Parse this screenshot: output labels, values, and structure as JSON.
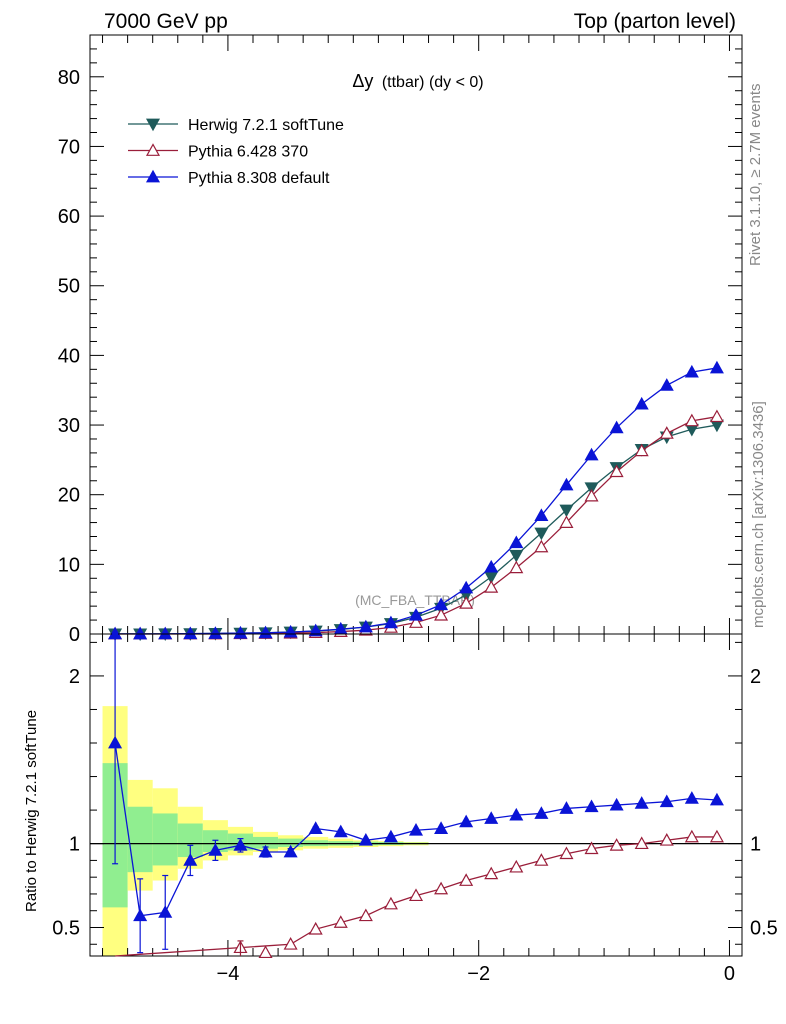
{
  "header": {
    "left": "7000 GeV pp",
    "right": "Top (parton level)"
  },
  "side_labels": {
    "rivet": "Rivet 3.1.10, ≥ 2.7M events",
    "mcplots": "mcplots.cern.ch [arXiv:1306.3436]"
  },
  "watermark": "(MC_FBA_TTBAR)",
  "chart_data": {
    "type": "line",
    "title": "Δy (ttbar) (dy < 0)",
    "title_main": "Δy",
    "title_sub": "(ttbar) (dy < 0)",
    "xlim": [
      -5.1,
      0.1
    ],
    "x_ticks": [
      -4,
      -2,
      0
    ],
    "x_tick_labels": [
      "−4",
      "−2",
      "0"
    ],
    "top_panel": {
      "ylim": [
        0,
        86
      ],
      "y_ticks": [
        0,
        10,
        20,
        30,
        40,
        50,
        60,
        70,
        80
      ],
      "y_tick_labels": [
        "0",
        "10",
        "20",
        "30",
        "40",
        "50",
        "60",
        "70",
        "80"
      ]
    },
    "ratio_panel": {
      "ylabel": "Ratio to Herwig 7.2.1 softTune",
      "ylim": [
        0.33,
        2.25
      ],
      "y_ticks": [
        0.5,
        1,
        2
      ],
      "y_tick_labels": [
        "0.5",
        "1",
        "2"
      ]
    },
    "legend_position": "top-left",
    "x": [
      -4.9,
      -4.7,
      -4.5,
      -4.3,
      -4.1,
      -3.9,
      -3.7,
      -3.5,
      -3.3,
      -3.1,
      -2.9,
      -2.7,
      -2.5,
      -2.3,
      -2.1,
      -1.9,
      -1.7,
      -1.5,
      -1.3,
      -1.1,
      -0.9,
      -0.7,
      -0.5,
      -0.3,
      -0.1
    ],
    "series": [
      {
        "name": "Herwig 7.2.1 softTune",
        "color": "#1f5b5b",
        "marker": "triangle-down-filled",
        "values": [
          0.01,
          0.02,
          0.03,
          0.05,
          0.08,
          0.12,
          0.18,
          0.28,
          0.42,
          0.65,
          1.0,
          1.5,
          2.4,
          3.7,
          5.6,
          8.2,
          11.3,
          14.5,
          17.8,
          21.0,
          23.9,
          26.5,
          28.3,
          29.4,
          30.0
        ],
        "ratio": [
          1,
          1,
          1,
          1,
          1,
          1,
          1,
          1,
          1,
          1,
          1,
          1,
          1,
          1,
          1,
          1,
          1,
          1,
          1,
          1,
          1,
          1,
          1,
          1,
          1
        ]
      },
      {
        "name": "Pythia 6.428 370",
        "color": "#9a1e3a",
        "marker": "triangle-up-open",
        "values": [
          0.0,
          0.0,
          0.0,
          0.0,
          0.0,
          0.04,
          0.07,
          0.11,
          0.2,
          0.35,
          0.55,
          0.95,
          1.65,
          2.7,
          4.4,
          6.7,
          9.5,
          12.5,
          16.0,
          19.8,
          23.3,
          26.3,
          28.8,
          30.6,
          31.2
        ],
        "ratio": [
          null,
          null,
          null,
          null,
          null,
          0.38,
          0.35,
          0.4,
          0.49,
          0.53,
          0.57,
          0.64,
          0.69,
          0.73,
          0.78,
          0.82,
          0.86,
          0.9,
          0.94,
          0.97,
          0.99,
          1.0,
          1.02,
          1.04,
          1.04
        ]
      },
      {
        "name": "Pythia 8.308 default",
        "color": "#0a14d6",
        "marker": "triangle-up-filled",
        "values": [
          0.016,
          0.012,
          0.018,
          0.045,
          0.078,
          0.12,
          0.17,
          0.27,
          0.45,
          0.7,
          1.0,
          1.6,
          2.7,
          4.2,
          6.6,
          9.6,
          13.1,
          17.0,
          21.4,
          25.7,
          29.6,
          33.0,
          35.7,
          37.6,
          38.2
        ],
        "ratio": [
          1.6,
          0.57,
          0.59,
          0.9,
          0.96,
          0.99,
          0.95,
          0.95,
          1.09,
          1.07,
          1.02,
          1.04,
          1.08,
          1.09,
          1.13,
          1.15,
          1.17,
          1.18,
          1.21,
          1.22,
          1.23,
          1.24,
          1.25,
          1.27,
          1.26
        ],
        "ratio_err": [
          0.72,
          0.22,
          0.22,
          0.09,
          0.06,
          0.04,
          0.03,
          0.02,
          0.01,
          0.01,
          0,
          0,
          0,
          0,
          0,
          0,
          0,
          0,
          0,
          0,
          0,
          0,
          0,
          0,
          0
        ]
      }
    ],
    "ratio_bands": {
      "x_edges": [
        -5.0,
        -4.8,
        -4.6,
        -4.4,
        -4.2,
        -4.0,
        -3.8,
        -3.6,
        -3.4,
        -3.2,
        -3.0,
        -2.8,
        -2.6,
        -2.4
      ],
      "yellow": [
        [
          0.2,
          1.82
        ],
        [
          0.72,
          1.38
        ],
        [
          0.78,
          1.33
        ],
        [
          0.85,
          1.22
        ],
        [
          0.9,
          1.14
        ],
        [
          0.93,
          1.1
        ],
        [
          0.95,
          1.07
        ],
        [
          0.96,
          1.05
        ],
        [
          0.97,
          1.04
        ],
        [
          0.975,
          1.03
        ],
        [
          0.98,
          1.02
        ],
        [
          0.985,
          1.015
        ],
        [
          0.99,
          1.01
        ]
      ],
      "green": [
        [
          0.62,
          1.48
        ],
        [
          0.83,
          1.22
        ],
        [
          0.87,
          1.18
        ],
        [
          0.92,
          1.12
        ],
        [
          0.95,
          1.08
        ],
        [
          0.96,
          1.06
        ],
        [
          0.97,
          1.04
        ],
        [
          0.98,
          1.03
        ],
        [
          0.985,
          1.02
        ],
        [
          0.988,
          1.015
        ],
        [
          0.99,
          1.012
        ],
        [
          0.992,
          1.01
        ],
        [
          0.995,
          1.006
        ]
      ],
      "yellow_color": "#ffff80",
      "green_color": "#90ee90"
    }
  }
}
